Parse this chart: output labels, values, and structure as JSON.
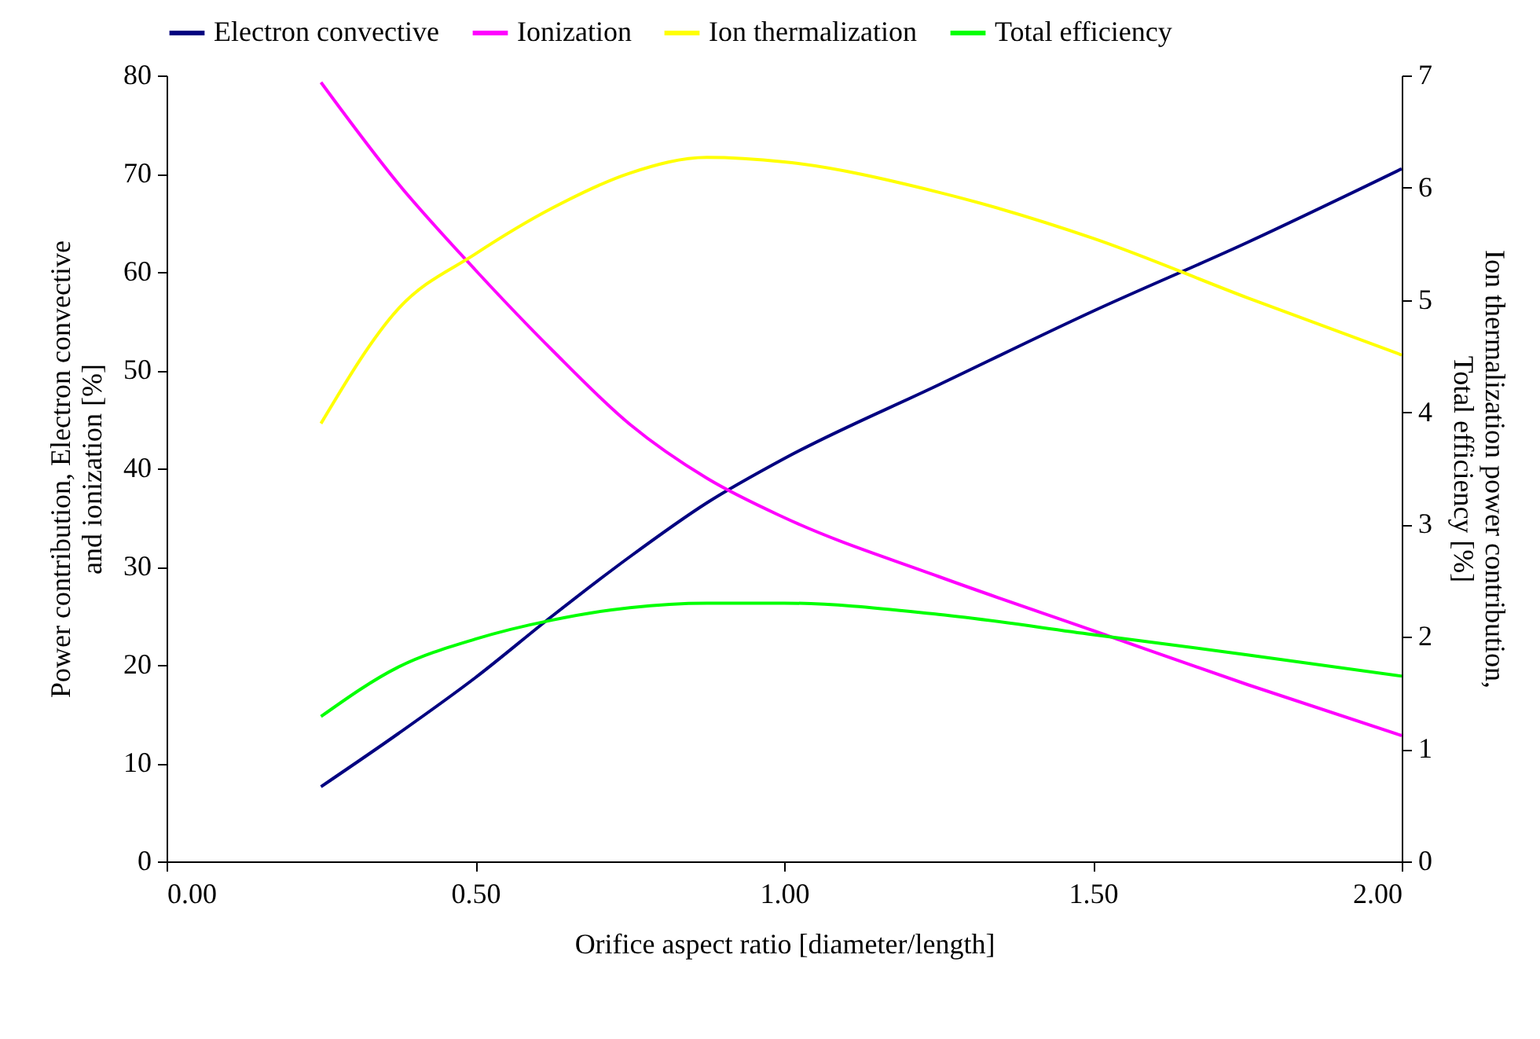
{
  "chart_data": {
    "type": "line",
    "xlabel": "Orifice aspect ratio [diameter/length]",
    "ylabel": "Power contribution, Electron convective and ionization [%]",
    "y2label": "Ion thermalization power contribution, Total efficiency [%]",
    "x": [
      0.25,
      0.375,
      0.5,
      0.625,
      0.75,
      0.875,
      1.0,
      1.25,
      1.5,
      1.75,
      2.0
    ],
    "series": [
      {
        "name": "Electron convective",
        "color": "#000080",
        "values": [
          7.6,
          13,
          18.7,
          25,
          31,
          36.5,
          41,
          48.5,
          56,
          63,
          70.5
        ]
      },
      {
        "name": "Ionization",
        "color": "#ff00ff",
        "values": [
          79.3,
          69,
          60.2,
          52,
          44.5,
          39,
          35,
          29,
          23.5,
          18,
          12.8
        ]
      },
      {
        "name": "Ion thermalization",
        "color": "#ffff00",
        "axis": "y2",
        "values": [
          3.9,
          4.92,
          5.41,
          5.82,
          6.13,
          6.27,
          6.23,
          5.96,
          5.55,
          5.02,
          4.51
        ]
      },
      {
        "name": "Total efficiency",
        "color": "#00ff00",
        "axis": "y2",
        "values": [
          1.29,
          1.73,
          1.98,
          2.15,
          2.26,
          2.3,
          2.3,
          2.2,
          2.02,
          1.84,
          1.65
        ]
      }
    ],
    "xlim": [
      0,
      2
    ],
    "xticks": [
      {
        "value": 0,
        "label": "0.00"
      },
      {
        "value": 0.5,
        "label": "0.50"
      },
      {
        "value": 1,
        "label": "1.00"
      },
      {
        "value": 1.5,
        "label": "1.50"
      },
      {
        "value": 2,
        "label": "2.00"
      }
    ],
    "ylim": [
      0,
      80
    ],
    "yticks": [
      0,
      10,
      20,
      30,
      40,
      50,
      60,
      70,
      80
    ],
    "y2lim": [
      0,
      7
    ],
    "y2ticks": [
      0,
      1,
      2,
      3,
      4,
      5,
      6,
      7
    ],
    "grid": false,
    "legend": "top",
    "marker": "none",
    "line_style": "solid"
  }
}
